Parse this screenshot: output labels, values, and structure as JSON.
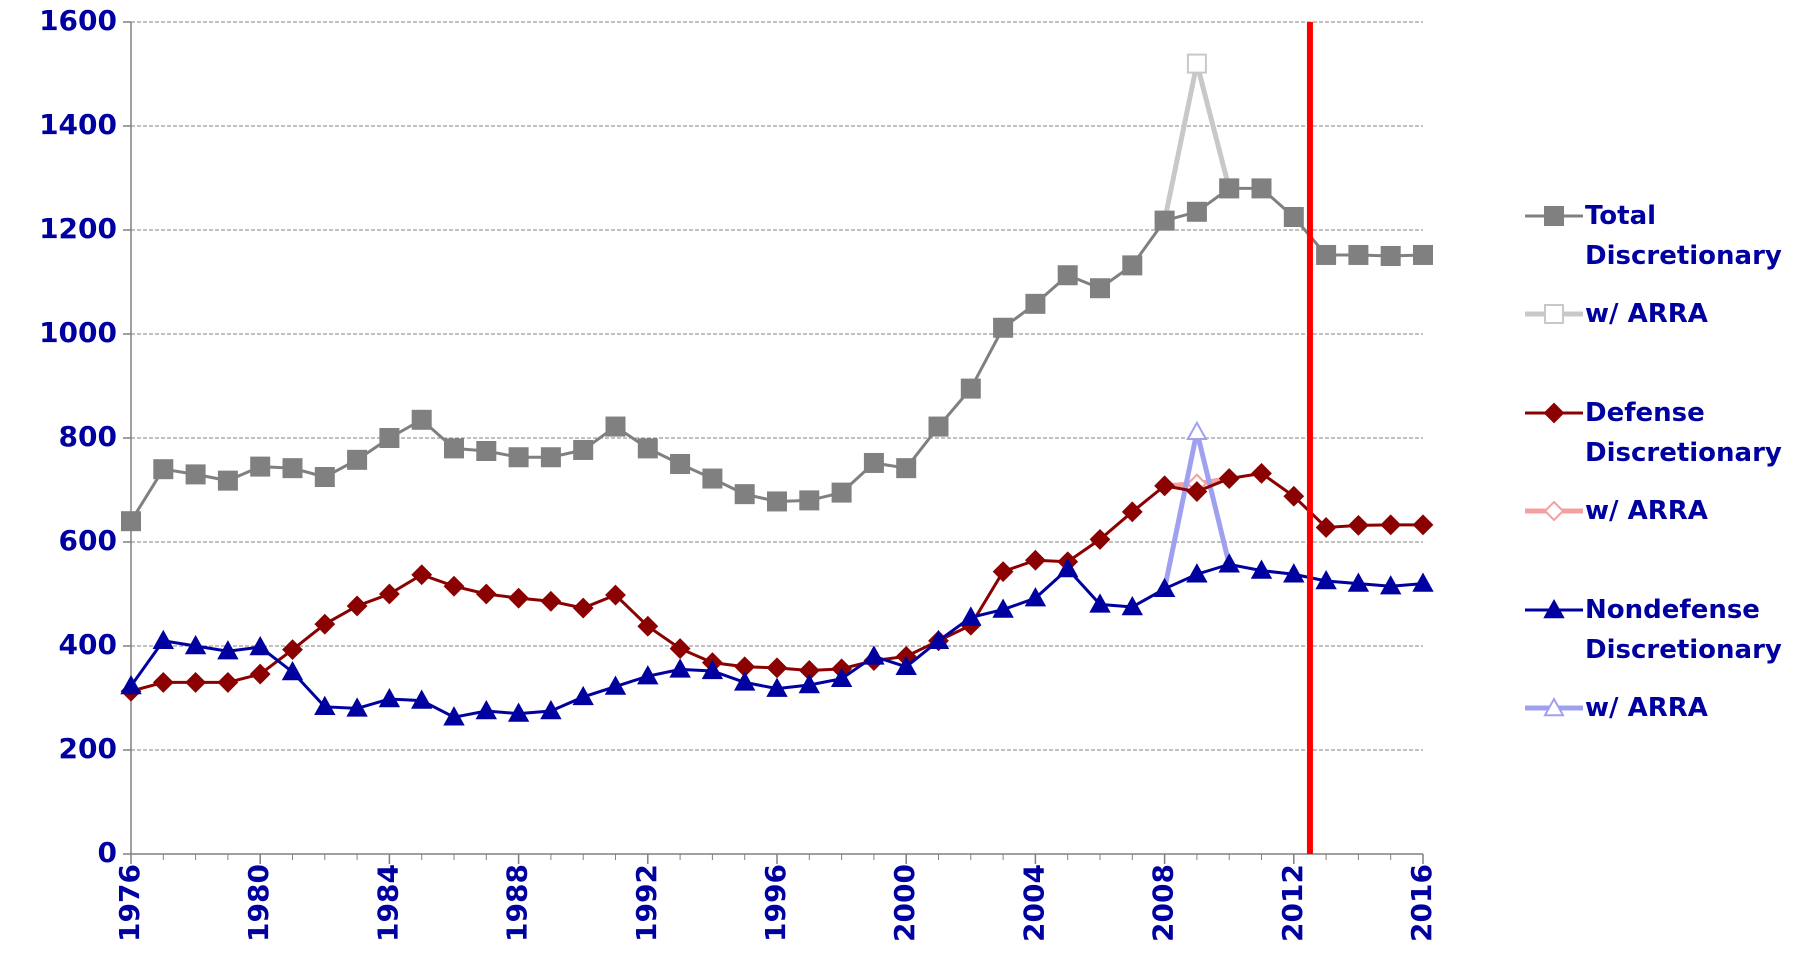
{
  "chart_data": {
    "type": "line",
    "x": [
      1976,
      1977,
      1978,
      1979,
      1980,
      1981,
      1982,
      1983,
      1984,
      1985,
      1986,
      1987,
      1988,
      1989,
      1990,
      1991,
      1992,
      1993,
      1994,
      1995,
      1996,
      1997,
      1998,
      1999,
      2000,
      2001,
      2002,
      2003,
      2004,
      2005,
      2006,
      2007,
      2008,
      2009,
      2010,
      2011,
      2012,
      2013,
      2014,
      2015,
      2016
    ],
    "xlim": [
      1976,
      2016
    ],
    "xticks": [
      1976,
      1980,
      1984,
      1988,
      1992,
      1996,
      2000,
      2004,
      2008,
      2012,
      2016
    ],
    "ylim": [
      0,
      1600
    ],
    "yticks": [
      0,
      200,
      400,
      600,
      800,
      1000,
      1200,
      1400,
      1600
    ],
    "grid": true,
    "divider_x": 2012.5,
    "divider_color": "#ff0000",
    "series": [
      {
        "name": "Total Discretionary",
        "color": "#808080",
        "marker": "square",
        "filled": true,
        "values": [
          640,
          740,
          730,
          718,
          745,
          742,
          725,
          758,
          800,
          835,
          780,
          775,
          763,
          763,
          777,
          822,
          780,
          750,
          722,
          692,
          678,
          680,
          695,
          752,
          742,
          822,
          895,
          1012,
          1058,
          1113,
          1088,
          1132,
          1218,
          1235,
          1280,
          1280,
          1225,
          1152,
          1152,
          1150,
          1152
        ]
      },
      {
        "name": "w/ ARRA",
        "color": "#c8c8c8",
        "marker": "square",
        "filled": false,
        "values": [
          null,
          null,
          null,
          null,
          null,
          null,
          null,
          null,
          null,
          null,
          null,
          null,
          null,
          null,
          null,
          null,
          null,
          null,
          null,
          null,
          null,
          null,
          null,
          null,
          null,
          null,
          null,
          null,
          null,
          null,
          null,
          null,
          1218,
          1520,
          1280,
          null,
          null,
          null,
          null,
          null,
          null
        ]
      },
      {
        "name": "Defense Discretionary",
        "color": "#8b0000",
        "marker": "diamond",
        "filled": true,
        "values": [
          313,
          330,
          330,
          330,
          346,
          393,
          442,
          477,
          500,
          537,
          515,
          500,
          492,
          486,
          473,
          498,
          438,
          395,
          368,
          360,
          358,
          353,
          356,
          372,
          380,
          410,
          440,
          543,
          565,
          562,
          605,
          658,
          708,
          697,
          722,
          732,
          688,
          628,
          632,
          633,
          633
        ]
      },
      {
        "name": "w/ ARRA",
        "color": "#f4a0a0",
        "marker": "diamond",
        "filled": false,
        "values": [
          null,
          null,
          null,
          null,
          null,
          null,
          null,
          null,
          null,
          null,
          null,
          null,
          null,
          null,
          null,
          null,
          null,
          null,
          null,
          null,
          null,
          null,
          null,
          null,
          null,
          null,
          null,
          null,
          null,
          null,
          null,
          null,
          708,
          712,
          722,
          null,
          null,
          null,
          null,
          null,
          null
        ]
      },
      {
        "name": "Nondefense Discretionary",
        "color": "#0000a0",
        "marker": "triangle",
        "filled": true,
        "values": [
          323,
          410,
          400,
          390,
          398,
          350,
          283,
          280,
          298,
          295,
          263,
          275,
          270,
          275,
          302,
          322,
          342,
          355,
          352,
          330,
          318,
          325,
          337,
          380,
          360,
          410,
          455,
          470,
          492,
          548,
          480,
          475,
          510,
          538,
          557,
          545,
          538,
          525,
          520,
          515,
          520
        ]
      },
      {
        "name": "w/ ARRA",
        "color": "#a0a0f0",
        "marker": "triangle",
        "filled": false,
        "values": [
          null,
          null,
          null,
          null,
          null,
          null,
          null,
          null,
          null,
          null,
          null,
          null,
          null,
          null,
          null,
          null,
          null,
          null,
          null,
          null,
          null,
          null,
          null,
          null,
          null,
          null,
          null,
          null,
          null,
          null,
          null,
          null,
          510,
          812,
          557,
          null,
          null,
          null,
          null,
          null,
          null
        ]
      }
    ]
  }
}
